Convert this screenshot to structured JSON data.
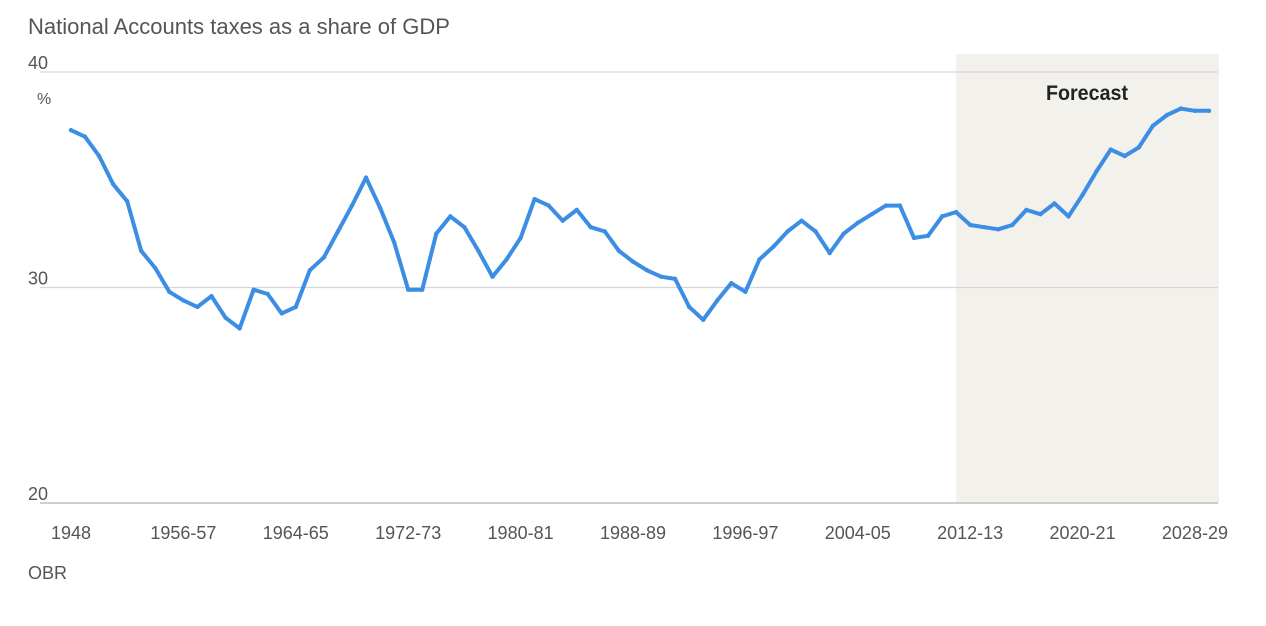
{
  "title": "National Accounts taxes as a share of GDP",
  "source": "OBR",
  "chart_data": {
    "type": "line",
    "title": "National Accounts taxes as a share of GDP",
    "unit_label": "%",
    "ylim": [
      20,
      40
    ],
    "y_ticks": [
      20,
      30,
      40
    ],
    "grid": true,
    "x_tick_labels": [
      "1948",
      "1956-57",
      "1964-65",
      "1972-73",
      "1980-81",
      "1988-89",
      "1996-97",
      "2004-05",
      "2012-13",
      "2020-21",
      "2028-29"
    ],
    "forecast_label": "Forecast",
    "forecast_start": "2011-12",
    "series": [
      {
        "color": "#3b8ee3",
        "x": [
          "1948",
          "1949-50",
          "1950-51",
          "1951-52",
          "1952-53",
          "1953-54",
          "1954-55",
          "1955-56",
          "1956-57",
          "1957-58",
          "1958-59",
          "1959-60",
          "1960-61",
          "1961-62",
          "1962-63",
          "1963-64",
          "1964-65",
          "1965-66",
          "1966-67",
          "1967-68",
          "1968-69",
          "1969-70",
          "1970-71",
          "1971-72",
          "1972-73",
          "1973-74",
          "1974-75",
          "1975-76",
          "1976-77",
          "1977-78",
          "1978-79",
          "1979-80",
          "1980-81",
          "1981-82",
          "1982-83",
          "1983-84",
          "1984-85",
          "1985-86",
          "1986-87",
          "1987-88",
          "1988-89",
          "1989-90",
          "1990-91",
          "1991-92",
          "1992-93",
          "1993-94",
          "1994-95",
          "1995-96",
          "1996-97",
          "1997-98",
          "1998-99",
          "1999-00",
          "2000-01",
          "2001-02",
          "2002-03",
          "2003-04",
          "2004-05",
          "2005-06",
          "2006-07",
          "2007-08",
          "2008-09",
          "2009-10",
          "2010-11",
          "2011-12",
          "2012-13",
          "2013-14",
          "2014-15",
          "2015-16",
          "2016-17",
          "2017-18",
          "2018-19",
          "2019-20",
          "2020-21",
          "2021-22",
          "2022-23",
          "2023-24",
          "2024-25",
          "2025-26",
          "2026-27",
          "2027-28",
          "2028-29",
          "2029-30"
        ],
        "values": [
          37.3,
          37.0,
          36.1,
          34.8,
          34.0,
          31.7,
          30.9,
          29.8,
          29.4,
          29.1,
          29.6,
          28.6,
          28.1,
          29.9,
          29.7,
          28.8,
          29.1,
          30.8,
          31.4,
          32.6,
          33.8,
          35.1,
          33.7,
          32.1,
          29.9,
          29.9,
          32.5,
          33.3,
          32.8,
          31.7,
          30.5,
          31.3,
          32.3,
          34.1,
          33.8,
          33.1,
          33.6,
          32.8,
          32.6,
          31.7,
          31.2,
          30.8,
          30.5,
          30.4,
          29.1,
          28.5,
          29.4,
          30.2,
          29.8,
          31.3,
          31.9,
          32.6,
          33.1,
          32.6,
          31.6,
          32.5,
          33.0,
          33.4,
          33.8,
          33.8,
          32.3,
          32.4,
          33.3,
          33.5,
          32.9,
          32.8,
          32.7,
          32.9,
          33.6,
          33.4,
          33.9,
          33.3,
          34.3,
          35.4,
          36.4,
          36.1,
          36.5,
          37.5,
          38.0,
          38.3,
          38.2,
          38.2
        ]
      }
    ]
  }
}
